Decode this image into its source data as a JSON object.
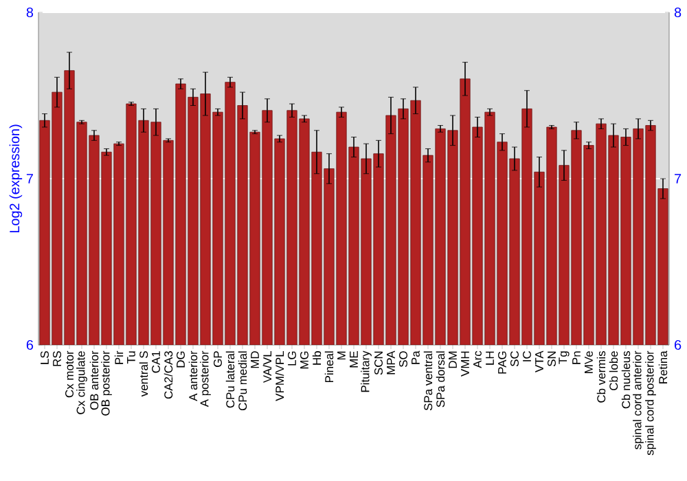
{
  "chart_data": {
    "type": "bar",
    "ylabel": "Log2 (expression)",
    "categories": [
      "LS",
      "RS",
      "Cx motor",
      "Cx cingulate",
      "OB anterior",
      "OB posterior",
      "Pir",
      "Tu",
      "ventral S",
      "CA1",
      "CA2/CA3",
      "DG",
      "A anterior",
      "A posterior",
      "GP",
      "CPu lateral",
      "CPu medial",
      "MD",
      "VA/VL",
      "VPM/VPL",
      "LG",
      "MG",
      "Hb",
      "Pineal",
      "M",
      "ME",
      "Pituitary",
      "SCN",
      "MPA",
      "SO",
      "Pa",
      "SPa ventral",
      "SPa dorsal",
      "DM",
      "VMH",
      "Arc",
      "LH",
      "PAG",
      "SC",
      "IC",
      "VTA",
      "SN",
      "Tg",
      "Pn",
      "MVe",
      "Cb vermis",
      "Cb lobe",
      "Cb nucleus",
      "spinal cord anterior",
      "spinal cord posterior",
      "Retina"
    ],
    "values": [
      7.35,
      7.52,
      7.65,
      7.34,
      7.26,
      7.16,
      7.21,
      7.45,
      7.35,
      7.34,
      7.23,
      7.57,
      7.49,
      7.51,
      7.4,
      7.58,
      7.44,
      7.28,
      7.41,
      7.24,
      7.41,
      7.36,
      7.16,
      7.06,
      7.4,
      7.19,
      7.12,
      7.15,
      7.38,
      7.42,
      7.47,
      7.14,
      7.3,
      7.29,
      7.6,
      7.31,
      7.4,
      7.22,
      7.12,
      7.42,
      7.04,
      7.31,
      7.08,
      7.29,
      7.2,
      7.33,
      7.26,
      7.25,
      7.3,
      7.32,
      6.94
    ],
    "errors": [
      0.04,
      0.09,
      0.11,
      0.01,
      0.03,
      0.02,
      0.01,
      0.01,
      0.07,
      0.08,
      0.01,
      0.03,
      0.05,
      0.13,
      0.02,
      0.03,
      0.08,
      0.01,
      0.07,
      0.02,
      0.04,
      0.02,
      0.13,
      0.09,
      0.03,
      0.06,
      0.09,
      0.08,
      0.11,
      0.06,
      0.08,
      0.04,
      0.02,
      0.09,
      0.1,
      0.06,
      0.02,
      0.05,
      0.07,
      0.11,
      0.09,
      0.01,
      0.09,
      0.05,
      0.02,
      0.03,
      0.07,
      0.05,
      0.06,
      0.03,
      0.06
    ],
    "color": "#b22222",
    "ylim": [
      6,
      8
    ],
    "yticks": [
      6,
      7,
      8
    ],
    "y2lim": [
      6,
      8
    ],
    "y2ticks": [
      6,
      7,
      8
    ],
    "grid": "y"
  }
}
